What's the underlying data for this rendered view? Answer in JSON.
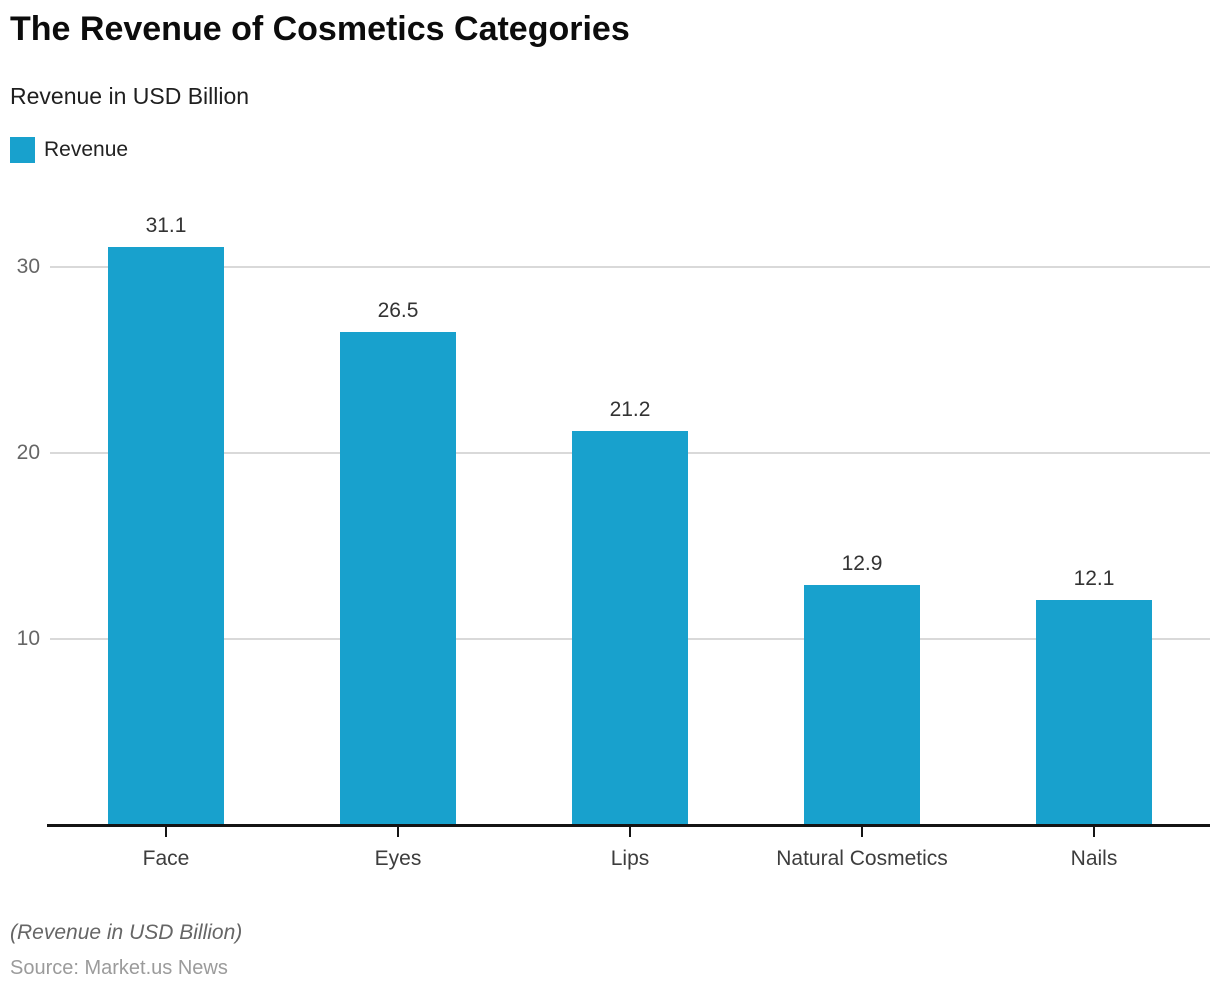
{
  "header": {
    "title": "The Revenue of Cosmetics Categories",
    "subtitle": "Revenue in USD Billion"
  },
  "legend": {
    "label": "Revenue",
    "color": "#18a1cd"
  },
  "chart_data": {
    "type": "bar",
    "title": "The Revenue of Cosmetics Categories",
    "subtitle": "Revenue in USD Billion",
    "categories": [
      "Face",
      "Eyes",
      "Lips",
      "Natural Cosmetics",
      "Nails"
    ],
    "series": [
      {
        "name": "Revenue",
        "values": [
          31.1,
          26.5,
          21.2,
          12.9,
          12.1
        ]
      }
    ],
    "value_labels": [
      "31.1",
      "26.5",
      "21.2",
      "12.9",
      "12.1"
    ],
    "xlabel": "",
    "ylabel": "Revenue in USD Billion",
    "yticks": [
      10,
      20,
      30
    ],
    "ytick_labels": [
      "10",
      "20",
      "30"
    ],
    "ylim": [
      0,
      35
    ],
    "grid": true,
    "legend_position": "top-left",
    "bar_color": "#18a1cd",
    "gridline_color": "#d9d9d9",
    "axis_color": "#141414"
  },
  "footer": {
    "note": "(Revenue in USD Billion)",
    "source": "Source: Market.us News"
  }
}
